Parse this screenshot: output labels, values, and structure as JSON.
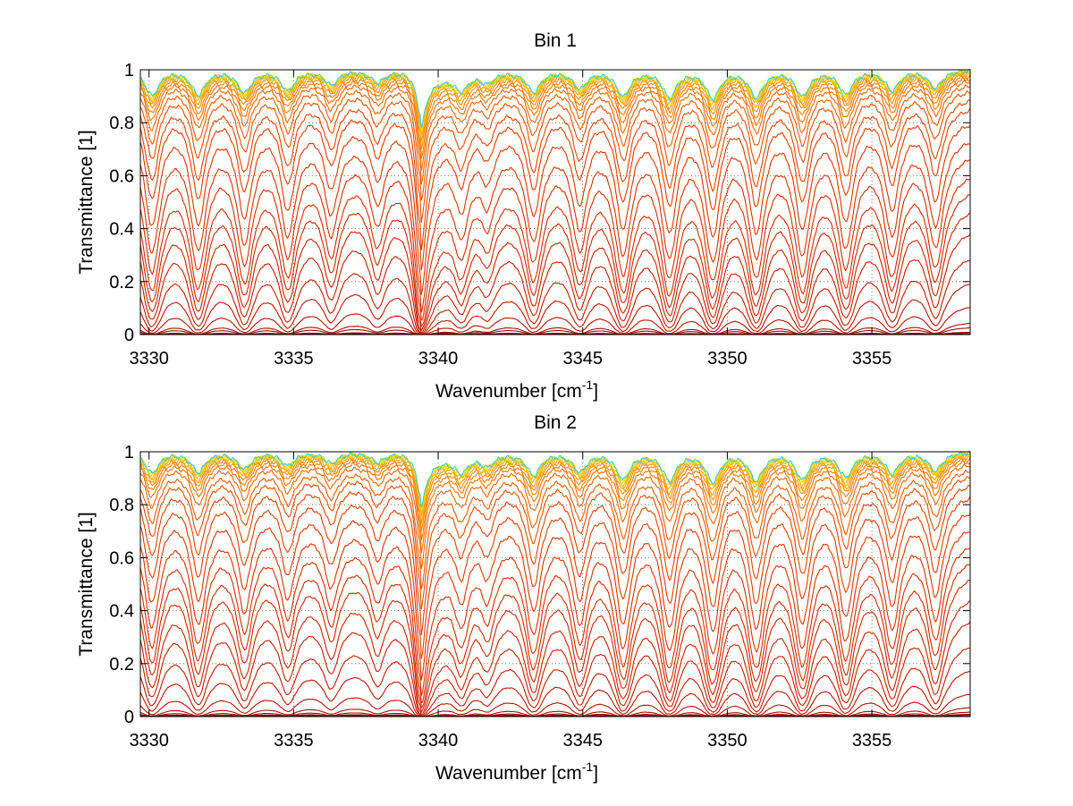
{
  "chart_data": [
    {
      "type": "line",
      "title": "Bin 1",
      "xlabel_main": "Wavenumber [cm",
      "xlabel_sup": "-1",
      "xlabel_end": "]",
      "ylabel": "Transmittance [1]",
      "xlim": [
        3329.7,
        3358.4
      ],
      "ylim": [
        0,
        1
      ],
      "xticks": [
        3330,
        3335,
        3340,
        3345,
        3350,
        3355
      ],
      "xtick_labels": [
        "3330",
        "3335",
        "3340",
        "3345",
        "3350",
        "3355"
      ],
      "yticks": [
        0,
        0.2,
        0.4,
        0.6,
        0.8,
        1
      ],
      "ytick_labels": [
        "0",
        "0.2",
        "0.4",
        "0.6",
        "0.8",
        "1"
      ],
      "grid": true,
      "line_centers": [
        3330.1,
        3331.7,
        3333.3,
        3334.8,
        3336.3,
        3337.9,
        3339.4,
        3340.8,
        3341.7,
        3343.3,
        3344.9,
        3346.4,
        3348.0,
        3349.5,
        3351.0,
        3352.6,
        3354.1,
        3355.7,
        3357.2
      ],
      "line_strengths": [
        2.2,
        2.1,
        1.9,
        1.7,
        1.2,
        1.0,
        4.0,
        1.3,
        0.8,
        1.8,
        1.5,
        2.2,
        2.3,
        2.4,
        2.3,
        2.2,
        2.0,
        1.7,
        1.5
      ],
      "series_top_transmittance": [
        0.005,
        0.01,
        0.03,
        0.05,
        0.12,
        0.22,
        0.32,
        0.42,
        0.5,
        0.57,
        0.63,
        0.7,
        0.76,
        0.82,
        0.87,
        0.9,
        0.93,
        0.95,
        0.965,
        0.975,
        0.982,
        0.988,
        0.992,
        0.995,
        0.997,
        0.998,
        0.999,
        1.0
      ],
      "series_colors": [
        "#7a0000",
        "#8b0000",
        "#9a0a00",
        "#a60c00",
        "#b01000",
        "#b81400",
        "#c01800",
        "#c41c00",
        "#c82000",
        "#cc2400",
        "#d02800",
        "#d42c00",
        "#d83000",
        "#dc3400",
        "#e03a00",
        "#e44200",
        "#e84c00",
        "#ec5800",
        "#f06400",
        "#f47000",
        "#f67c00",
        "#f88a00",
        "#fa9a00",
        "#fcaa00",
        "#fdbc00",
        "#fdce00",
        "#e8e000",
        "#38c8e0"
      ]
    },
    {
      "type": "line",
      "title": "Bin 2",
      "xlabel_main": "Wavenumber [cm",
      "xlabel_sup": "-1",
      "xlabel_end": "]",
      "ylabel": "Transmittance [1]",
      "xlim": [
        3329.7,
        3358.4
      ],
      "ylim": [
        0,
        1
      ],
      "xticks": [
        3330,
        3335,
        3340,
        3345,
        3350,
        3355
      ],
      "xtick_labels": [
        "3330",
        "3335",
        "3340",
        "3345",
        "3350",
        "3355"
      ],
      "yticks": [
        0,
        0.2,
        0.4,
        0.6,
        0.8,
        1
      ],
      "ytick_labels": [
        "0",
        "0.2",
        "0.4",
        "0.6",
        "0.8",
        "1"
      ],
      "grid": true,
      "line_centers": [
        3330.1,
        3331.7,
        3333.3,
        3334.8,
        3336.3,
        3337.9,
        3339.4,
        3340.8,
        3341.7,
        3343.3,
        3344.9,
        3346.4,
        3348.0,
        3349.5,
        3351.0,
        3352.6,
        3354.1,
        3355.7,
        3357.2
      ],
      "line_strengths": [
        1.8,
        1.7,
        1.4,
        1.1,
        0.9,
        0.8,
        3.8,
        1.3,
        0.9,
        1.9,
        1.6,
        2.3,
        2.4,
        2.5,
        2.4,
        2.3,
        2.1,
        1.8,
        1.6
      ],
      "series_top_transmittance": [
        0.005,
        0.01,
        0.02,
        0.04,
        0.1,
        0.2,
        0.3,
        0.4,
        0.48,
        0.56,
        0.62,
        0.68,
        0.74,
        0.8,
        0.85,
        0.89,
        0.92,
        0.94,
        0.96,
        0.972,
        0.98,
        0.986,
        0.99,
        0.994,
        0.996,
        0.998,
        0.999,
        1.0
      ],
      "series_colors": [
        "#7a0000",
        "#8b0000",
        "#9a0a00",
        "#a60c00",
        "#b01000",
        "#b81400",
        "#c01800",
        "#c41c00",
        "#c82000",
        "#cc2400",
        "#d02800",
        "#d42c00",
        "#d83000",
        "#dc3400",
        "#e03a00",
        "#e44200",
        "#e84c00",
        "#ec5800",
        "#f06400",
        "#f47000",
        "#f67c00",
        "#f88a00",
        "#fa9a00",
        "#fcaa00",
        "#fdbc00",
        "#fdce00",
        "#e8e000",
        "#38c8e0"
      ]
    }
  ]
}
